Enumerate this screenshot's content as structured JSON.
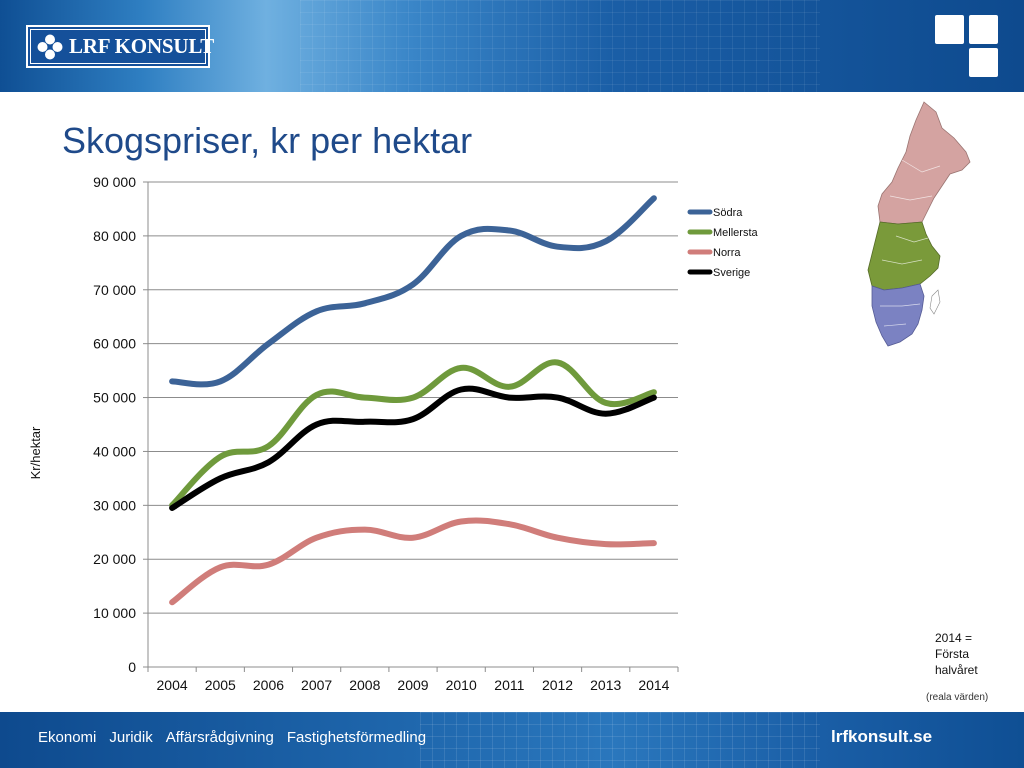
{
  "header": {
    "logo_text": "LRF KONSULT"
  },
  "slide": {
    "title": "Skogspriser, kr per hektar"
  },
  "chart_data": {
    "type": "line",
    "title": "",
    "xlabel": "",
    "ylabel": "Kr/hektar",
    "categories": [
      "2004",
      "2005",
      "2006",
      "2007",
      "2008",
      "2009",
      "2010",
      "2011",
      "2012",
      "2013",
      "2014"
    ],
    "ylim": [
      0,
      90000
    ],
    "ytick_values": [
      0,
      10000,
      20000,
      30000,
      40000,
      50000,
      60000,
      70000,
      80000,
      90000
    ],
    "ytick_labels": [
      "0",
      "10 000",
      "20 000",
      "30 000",
      "40 000",
      "50 000",
      "60 000",
      "70 000",
      "80 000",
      "90 000"
    ],
    "grid": "horizontal",
    "legend_position": "right",
    "series": [
      {
        "name": "Södra",
        "color": "#3c6397",
        "values": [
          53000,
          53000,
          60000,
          66000,
          67500,
          71000,
          80000,
          81000,
          78000,
          79000,
          87000
        ]
      },
      {
        "name": "Mellersta",
        "color": "#6f9a3c",
        "values": [
          30000,
          39000,
          41000,
          50500,
          50000,
          50000,
          55500,
          52000,
          56500,
          49000,
          51000
        ]
      },
      {
        "name": "Norra",
        "color": "#d07d7a",
        "values": [
          12000,
          18500,
          19000,
          24000,
          25500,
          24000,
          27000,
          26500,
          24000,
          22800,
          23000
        ]
      },
      {
        "name": "Sverige",
        "color": "#000000",
        "values": [
          29500,
          35000,
          38000,
          45000,
          45500,
          46000,
          51500,
          50000,
          50000,
          47000,
          50000
        ]
      }
    ]
  },
  "map": {
    "regions": [
      {
        "name": "norra",
        "color": "#d4a3a1"
      },
      {
        "name": "mellersta",
        "color": "#7a9a3a"
      },
      {
        "name": "sodra",
        "color": "#7b82c2"
      }
    ]
  },
  "notes": {
    "line1": "2014 =",
    "line2": "Första",
    "line3": "halvåret",
    "real_values": "(reala värden)"
  },
  "footer": {
    "nav": [
      "Ekonomi",
      "Juridik",
      "Affärsrådgivning",
      "Fastighetsförmedling"
    ],
    "site": "lrfkonsult.se"
  }
}
